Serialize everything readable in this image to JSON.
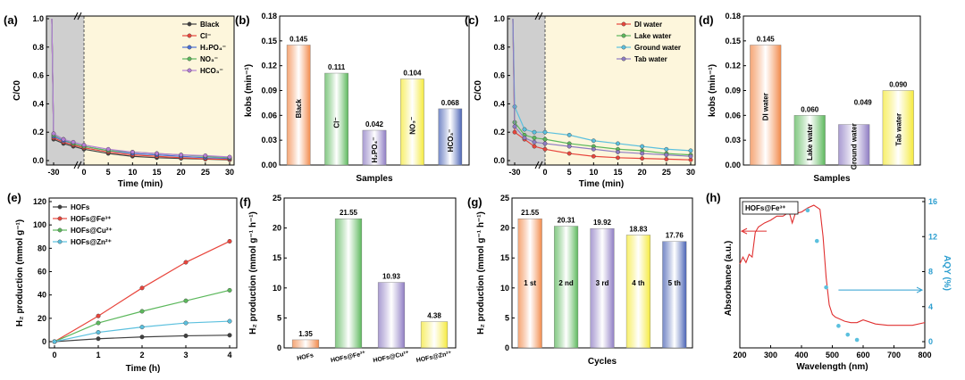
{
  "colors": {
    "black": "#404040",
    "red": "#e8453c",
    "green": "#5cb85c",
    "blue": "#4a6fd6",
    "violet": "#b57fd6",
    "teal": "#5bc0de",
    "orange": "#f28a4b",
    "yellow": "#f5ea3c",
    "purple": "#8e7cc3",
    "navy": "#4a63b5",
    "shade_gray": "#cfcfcf",
    "shade_cream": "#fdf6dc"
  },
  "chart_data": [
    {
      "id": "a",
      "panel_label": "(a)",
      "type": "line",
      "xlabel": "Time (min)",
      "ylabel": "C/C0",
      "xticks": [
        "-30",
        "0",
        "5",
        "10",
        "15",
        "20",
        "25",
        "30"
      ],
      "yticks": [
        "0.0",
        "0.2",
        "0.4",
        "0.6",
        "0.8",
        "1.0"
      ],
      "ylim": [
        0,
        1.0
      ],
      "x": [
        -30,
        -25,
        -20,
        0,
        5,
        10,
        15,
        20,
        25,
        30
      ],
      "series": [
        {
          "name": "Black",
          "color_key": "black",
          "values": [
            0.15,
            0.12,
            0.1,
            0.08,
            0.05,
            0.03,
            0.02,
            0.015,
            0.01,
            0.005
          ]
        },
        {
          "name": "Cl⁻",
          "color_key": "red",
          "values": [
            0.16,
            0.13,
            0.11,
            0.09,
            0.06,
            0.04,
            0.03,
            0.02,
            0.012,
            0.008
          ]
        },
        {
          "name": "H₂PO₄⁻",
          "color_key": "blue",
          "values": [
            0.17,
            0.14,
            0.12,
            0.1,
            0.07,
            0.05,
            0.04,
            0.03,
            0.02,
            0.015
          ]
        },
        {
          "name": "NO₃⁻",
          "color_key": "green",
          "values": [
            0.18,
            0.15,
            0.12,
            0.1,
            0.07,
            0.06,
            0.05,
            0.04,
            0.03,
            0.02
          ]
        },
        {
          "name": "HCO₃⁻",
          "color_key": "violet",
          "values": [
            0.19,
            0.15,
            0.13,
            0.11,
            0.08,
            0.06,
            0.05,
            0.04,
            0.035,
            0.025
          ]
        }
      ]
    },
    {
      "id": "b",
      "panel_label": "(b)",
      "type": "bar",
      "xlabel": "Samples",
      "ylabel": "kobs (min⁻¹)",
      "yticks": [
        "0.00",
        "0.03",
        "0.06",
        "0.09",
        "0.12",
        "0.15",
        "0.18"
      ],
      "ylim": [
        0,
        0.18
      ],
      "categories": [
        "Black",
        "Cl⁻",
        "H₂PO₄⁻",
        "NO₃⁻",
        "HCO₃⁻"
      ],
      "values": [
        0.145,
        0.111,
        0.042,
        0.104,
        0.068
      ],
      "value_labels": [
        "0.145",
        "0.111",
        "0.042",
        "0.104",
        "0.068"
      ],
      "color_keys": [
        "orange",
        "green",
        "purple",
        "yellow",
        "navy"
      ]
    },
    {
      "id": "c",
      "panel_label": "(c)",
      "type": "line",
      "xlabel": "Time (min)",
      "ylabel": "C/C0",
      "xticks": [
        "-30",
        "0",
        "5",
        "10",
        "15",
        "20",
        "25",
        "30"
      ],
      "yticks": [
        "0.0",
        "0.2",
        "0.4",
        "0.6",
        "0.8",
        "1.0"
      ],
      "ylim": [
        0,
        1.0
      ],
      "x": [
        -30,
        -25,
        -20,
        0,
        5,
        10,
        15,
        20,
        25,
        30
      ],
      "series": [
        {
          "name": "DI water",
          "color_key": "red",
          "values": [
            0.2,
            0.15,
            0.1,
            0.08,
            0.05,
            0.03,
            0.02,
            0.015,
            0.01,
            0.005
          ]
        },
        {
          "name": "Lake water",
          "color_key": "green",
          "values": [
            0.27,
            0.18,
            0.16,
            0.15,
            0.12,
            0.1,
            0.08,
            0.07,
            0.05,
            0.04
          ]
        },
        {
          "name": "Ground water",
          "color_key": "teal",
          "values": [
            0.38,
            0.22,
            0.2,
            0.2,
            0.18,
            0.14,
            0.12,
            0.1,
            0.08,
            0.07
          ]
        },
        {
          "name": "Tab water",
          "color_key": "purple",
          "values": [
            0.24,
            0.16,
            0.13,
            0.12,
            0.1,
            0.08,
            0.06,
            0.05,
            0.04,
            0.03
          ]
        }
      ]
    },
    {
      "id": "d",
      "panel_label": "(d)",
      "type": "bar",
      "xlabel": "Samples",
      "ylabel": "kobs (min⁻¹)",
      "yticks": [
        "0.00",
        "0.03",
        "0.06",
        "0.09",
        "0.12",
        "0.15",
        "0.18"
      ],
      "ylim": [
        0,
        0.18
      ],
      "categories": [
        "DI water",
        "Lake water",
        "Ground water",
        "Tab water"
      ],
      "values": [
        0.145,
        0.06,
        0.049,
        0.09
      ],
      "value_labels": [
        "0.145",
        "0.060",
        "0.049",
        "0.090"
      ],
      "color_keys": [
        "orange",
        "green",
        "purple",
        "yellow"
      ]
    },
    {
      "id": "e",
      "panel_label": "(e)",
      "type": "line",
      "xlabel": "Time (h)",
      "ylabel": "H₂ production (mmol g⁻¹)",
      "xticks": [
        "0",
        "1",
        "2",
        "3",
        "4"
      ],
      "yticks": [
        "0",
        "20",
        "40",
        "60",
        "80",
        "100",
        "120"
      ],
      "ylim": [
        0,
        120
      ],
      "xlim": [
        0,
        4
      ],
      "x": [
        0,
        1,
        2,
        3,
        4
      ],
      "series": [
        {
          "name": "HOFs",
          "color_key": "black",
          "values": [
            0,
            2.5,
            4,
            5,
            5.5
          ]
        },
        {
          "name": "HOFs@Fe³⁺",
          "color_key": "red",
          "values": [
            0,
            22,
            46,
            68,
            86
          ]
        },
        {
          "name": "HOFs@Cu²⁺",
          "color_key": "green",
          "values": [
            0,
            16,
            26,
            35,
            44
          ]
        },
        {
          "name": "HOFs@Zn²⁺",
          "color_key": "teal",
          "values": [
            0,
            8,
            12.5,
            16,
            17.5
          ]
        }
      ]
    },
    {
      "id": "f",
      "panel_label": "(f)",
      "type": "bar",
      "xlabel": "",
      "ylabel": "H₂ production (mmol g⁻¹ h⁻¹)",
      "yticks": [
        "0",
        "5",
        "10",
        "15",
        "20",
        "25"
      ],
      "ylim": [
        0,
        25
      ],
      "categories": [
        "HOFs",
        "HOFs@Fe³⁺",
        "HOFs@Cu²⁺",
        "HOFs@Zn²⁺"
      ],
      "values": [
        1.35,
        21.55,
        10.93,
        4.38
      ],
      "value_labels": [
        "1.35",
        "21.55",
        "10.93",
        "4.38"
      ],
      "color_keys": [
        "orange",
        "green",
        "purple",
        "yellow"
      ]
    },
    {
      "id": "g",
      "panel_label": "(g)",
      "type": "bar",
      "xlabel": "Cycles",
      "ylabel": "H₂ production (mmol g⁻¹ h⁻¹)",
      "yticks": [
        "0",
        "5",
        "10",
        "15",
        "20",
        "25"
      ],
      "ylim": [
        0,
        25
      ],
      "categories": [
        "1 st",
        "2 nd",
        "3 rd",
        "4 th",
        "5 th"
      ],
      "values": [
        21.55,
        20.31,
        19.92,
        18.83,
        17.76
      ],
      "value_labels": [
        "21.55",
        "20.31",
        "19.92",
        "18.83",
        "17.76"
      ],
      "color_keys": [
        "orange",
        "green",
        "purple",
        "yellow",
        "navy"
      ]
    },
    {
      "id": "h",
      "panel_label": "(h)",
      "type": "line",
      "title": "HOFs@Fe³⁺",
      "xlabel": "Wavelength (nm)",
      "ylabel": "Absorbance (a.u.)",
      "y2label": "AQY (%)",
      "xticks": [
        "200",
        "300",
        "400",
        "500",
        "600",
        "700",
        "800"
      ],
      "y2ticks": [
        "0",
        "4",
        "8",
        "12",
        "16"
      ],
      "xlim": [
        200,
        800
      ],
      "y2lim": [
        0,
        16
      ],
      "absorbance": {
        "x": [
          200,
          210,
          220,
          230,
          240,
          250,
          260,
          280,
          300,
          320,
          340,
          360,
          370,
          380,
          400,
          420,
          440,
          460,
          470,
          480,
          490,
          500,
          510,
          520,
          540,
          560,
          580,
          600,
          640,
          680,
          720,
          760,
          800
        ],
        "y": [
          0.55,
          0.6,
          0.56,
          0.62,
          0.6,
          0.78,
          0.82,
          0.85,
          0.87,
          0.9,
          0.9,
          0.93,
          0.85,
          0.92,
          0.93,
          0.96,
          0.98,
          0.95,
          0.75,
          0.45,
          0.25,
          0.18,
          0.16,
          0.15,
          0.13,
          0.12,
          0.12,
          0.14,
          0.11,
          0.1,
          0.1,
          0.1,
          0.12
        ]
      },
      "aqy": {
        "x": [
          420,
          450,
          480,
          520,
          550,
          580
        ],
        "y": [
          15,
          11.5,
          6.2,
          1.8,
          0.8,
          0.2
        ]
      }
    }
  ]
}
